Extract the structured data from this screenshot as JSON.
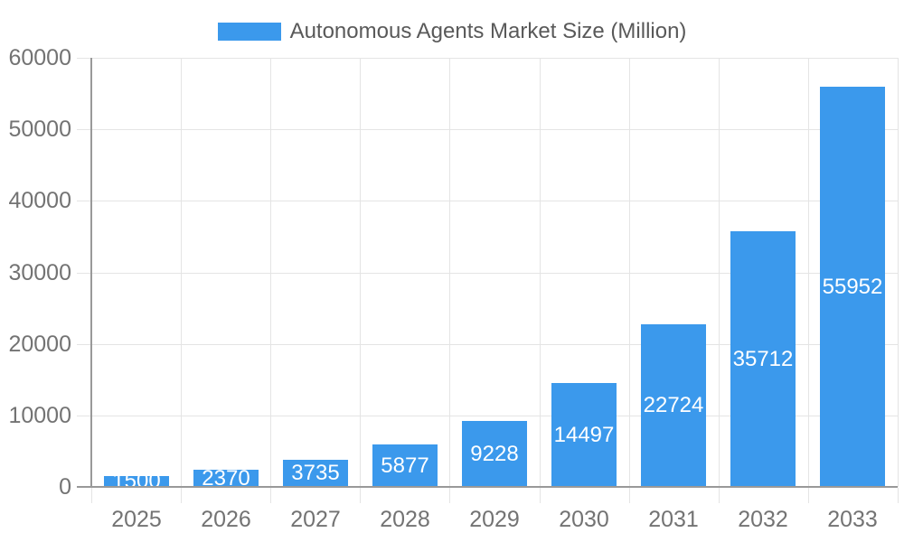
{
  "chart": {
    "legend_label": "Autonomous Agents Market Size (Million)"
  },
  "colors": {
    "bar": "#3B99EC",
    "grid": "#E4E4E4",
    "axis_line": "#999999",
    "tick_label": "#737373",
    "legend_label": "#595959",
    "value_label": "#FFFFFF",
    "background": "#FFFFFF"
  },
  "chart_data": {
    "type": "bar",
    "title": "",
    "legend": [
      "Autonomous Agents Market Size (Million)"
    ],
    "legend_position": "top",
    "categories": [
      "2025",
      "2026",
      "2027",
      "2028",
      "2029",
      "2030",
      "2031",
      "2032",
      "2033"
    ],
    "values": [
      1500,
      2370,
      3735,
      5877,
      9228,
      14497,
      22724,
      35712,
      55952
    ],
    "series_name": "Autonomous Agents Market Size (Million)",
    "xlabel": "",
    "ylabel": "",
    "ylim": [
      0,
      60000
    ],
    "ytick_step": 10000,
    "yticks": [
      0,
      10000,
      20000,
      30000,
      40000,
      50000,
      60000
    ],
    "grid": true,
    "bar_value_labels": "inside-center"
  }
}
